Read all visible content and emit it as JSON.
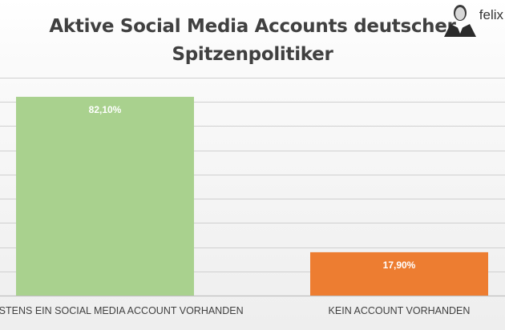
{
  "chart_data": {
    "type": "bar",
    "title_lines": [
      "Aktive Social Media Accounts deutscher",
      "Spitzenpolitiker"
    ],
    "categories": [
      "MINDESTENS EIN SOCIAL MEDIA ACCOUNT VORHANDEN",
      "KEIN ACCOUNT VORHANDEN"
    ],
    "values": [
      82.1,
      17.9
    ],
    "data_labels": [
      "82,10%",
      "17,90%"
    ],
    "colors": [
      "#a9d18e",
      "#ed7d31"
    ],
    "ylim": [
      0,
      90
    ],
    "grid": true,
    "legend": "none"
  },
  "logo": {
    "text": "felix"
  }
}
